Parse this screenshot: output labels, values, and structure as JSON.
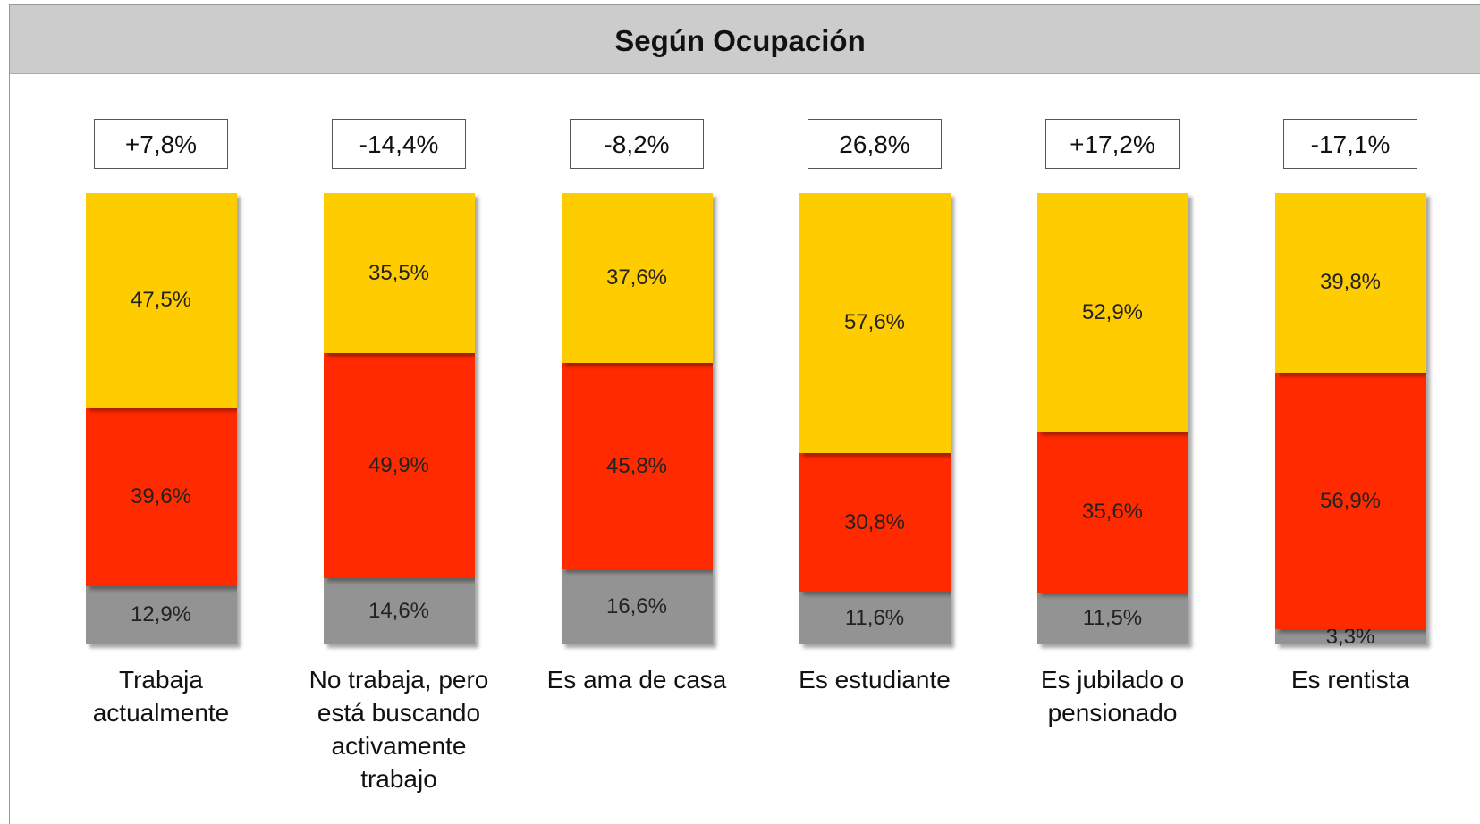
{
  "chart_data": {
    "type": "bar",
    "stacked": true,
    "title": "Según Ocupación",
    "categories": [
      "Trabaja actualmente",
      "No trabaja, pero está buscando activamente trabajo",
      "Es ama de casa",
      "Es estudiante",
      "Es jubilado o pensionado",
      "Es rentista"
    ],
    "series": [
      {
        "color": "#939393",
        "values": [
          12.9,
          14.6,
          16.6,
          11.6,
          11.5,
          3.3
        ],
        "value_labels": [
          "12,9%",
          "14,6%",
          "16,6%",
          "11,6%",
          "11,5%",
          "3,3%"
        ]
      },
      {
        "color": "#ff2a00",
        "values": [
          39.6,
          49.9,
          45.8,
          30.8,
          35.6,
          56.9
        ],
        "value_labels": [
          "39,6%",
          "49,9%",
          "45,8%",
          "30,8%",
          "35,6%",
          "56,9%"
        ]
      },
      {
        "color": "#ffcc00",
        "values": [
          47.5,
          35.5,
          37.6,
          57.6,
          52.9,
          39.8
        ],
        "value_labels": [
          "47,5%",
          "35,5%",
          "37,6%",
          "57,6%",
          "52,9%",
          "39,8%"
        ]
      }
    ],
    "net": {
      "values": [
        7.8,
        -14.4,
        -8.2,
        26.8,
        17.2,
        -17.1
      ],
      "value_labels": [
        "+7,8%",
        "-14,4%",
        "-8,2%",
        "26,8%",
        "+17,2%",
        "-17,1%"
      ]
    },
    "ylim": [
      0,
      100
    ]
  }
}
